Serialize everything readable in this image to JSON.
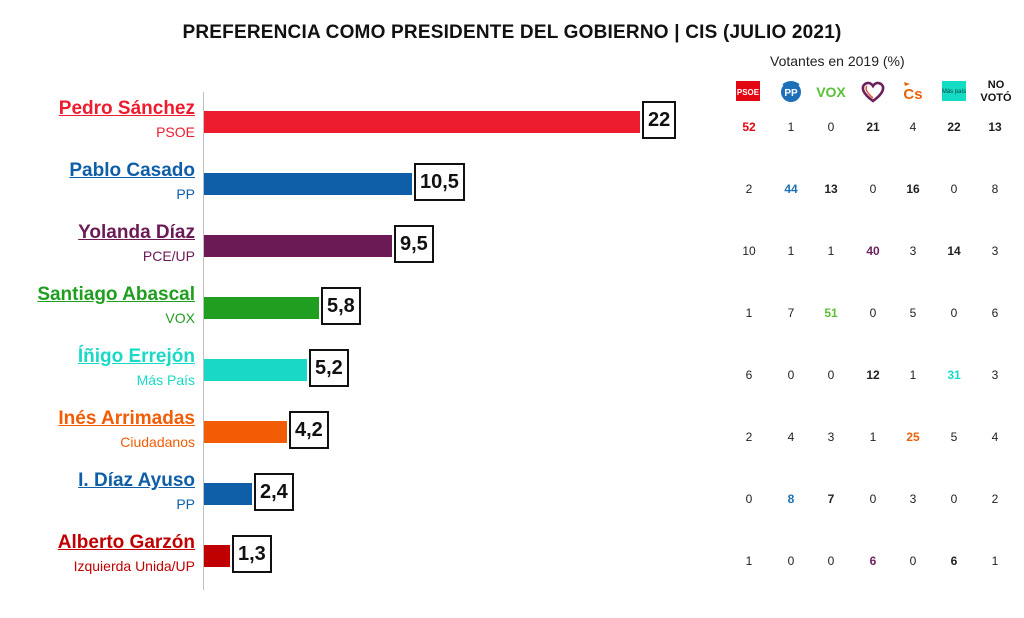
{
  "title": "PREFERENCIA COMO PRESIDENTE DEL GOBIERNO |  CIS (JULIO 2021)",
  "table": {
    "title": "Votantes en 2019 (%)",
    "columns": [
      {
        "key": "psoe",
        "label": "PSOE",
        "icon": "psoe-logo-icon",
        "color": "#e30613"
      },
      {
        "key": "pp",
        "label": "PP",
        "icon": "pp-logo-icon",
        "color": "#1d6fb8"
      },
      {
        "key": "vox",
        "label": "VOX",
        "icon": "vox-logo-icon",
        "color": "#5bc035"
      },
      {
        "key": "up",
        "label": "",
        "icon": "unidas-podemos-heart-icon",
        "color": "#6b1f5c"
      },
      {
        "key": "cs",
        "label": "Cs",
        "icon": "ciudadanos-logo-icon",
        "color": "#eb6109"
      },
      {
        "key": "mp",
        "label": "Más país",
        "icon": "mas-pais-logo-icon",
        "color": "#14dbc4"
      },
      {
        "key": "nv",
        "label": "NO VOTÓ",
        "icon": "",
        "color": "#111111"
      }
    ]
  },
  "chart_data": {
    "type": "bar",
    "title": "PREFERENCIA COMO PRESIDENTE DEL GOBIERNO |  CIS (JULIO 2021)",
    "xlabel": "",
    "ylabel": "",
    "xlim": [
      0,
      22
    ],
    "orientation": "horizontal",
    "categories": [
      "Pedro Sánchez",
      "Pablo Casado",
      "Yolanda Díaz",
      "Santiago Abascal",
      "Íñigo Errejón",
      "Inés Arrimadas",
      "I. Díaz Ayuso",
      "Alberto Garzón"
    ],
    "values": [
      22,
      10.5,
      9.5,
      5.8,
      5.2,
      4.2,
      2.4,
      1.3
    ],
    "candidates": [
      {
        "name": "Pedro Sánchez",
        "party": "PSOE",
        "value": 22,
        "value_label": "22",
        "color": "#ed1c2e",
        "breakdown": [
          "52",
          "1",
          "0",
          "21",
          "4",
          "22",
          "13"
        ],
        "bold": [
          0,
          3,
          5,
          6
        ],
        "highlight": 0
      },
      {
        "name": "Pablo Casado",
        "party": "PP",
        "value": 10.5,
        "value_label": "10,5",
        "color": "#0f5ea8",
        "breakdown": [
          "2",
          "44",
          "13",
          "0",
          "16",
          "0",
          "8"
        ],
        "bold": [
          1,
          2,
          4
        ],
        "highlight": 1
      },
      {
        "name": "Yolanda Díaz",
        "party": "PCE/UP",
        "value": 9.5,
        "value_label": "9,5",
        "color": "#6b1a56",
        "breakdown": [
          "10",
          "1",
          "1",
          "40",
          "3",
          "14",
          "3"
        ],
        "bold": [
          3,
          5
        ],
        "highlight": 3
      },
      {
        "name": "Santiago Abascal",
        "party": "VOX",
        "value": 5.8,
        "value_label": "5,8",
        "color": "#1f9e1f",
        "breakdown": [
          "1",
          "7",
          "51",
          "0",
          "5",
          "0",
          "6"
        ],
        "bold": [
          2
        ],
        "highlight": 2
      },
      {
        "name": "Íñigo Errejón",
        "party": "Más País",
        "value": 5.2,
        "value_label": "5,2",
        "color": "#19d9c6",
        "breakdown": [
          "6",
          "0",
          "0",
          "12",
          "1",
          "31",
          "3"
        ],
        "bold": [
          3,
          5
        ],
        "highlight": 5
      },
      {
        "name": "Inés Arrimadas",
        "party": "Ciudadanos",
        "value": 4.2,
        "value_label": "4,2",
        "color": "#f25c05",
        "breakdown": [
          "2",
          "4",
          "3",
          "1",
          "25",
          "5",
          "4"
        ],
        "bold": [
          4
        ],
        "highlight": 4
      },
      {
        "name": "I. Díaz Ayuso",
        "party": "PP",
        "value": 2.4,
        "value_label": "2,4",
        "color": "#0f5ea8",
        "breakdown": [
          "0",
          "8",
          "7",
          "0",
          "3",
          "0",
          "2"
        ],
        "bold": [
          1,
          2
        ],
        "highlight": 1
      },
      {
        "name": "Alberto Garzón",
        "party": "Izquierda Unida/UP",
        "value": 1.3,
        "value_label": "1,3",
        "color": "#c00000",
        "breakdown": [
          "1",
          "0",
          "0",
          "6",
          "0",
          "6",
          "1"
        ],
        "bold": [
          3,
          5
        ],
        "highlight": 3
      }
    ]
  }
}
